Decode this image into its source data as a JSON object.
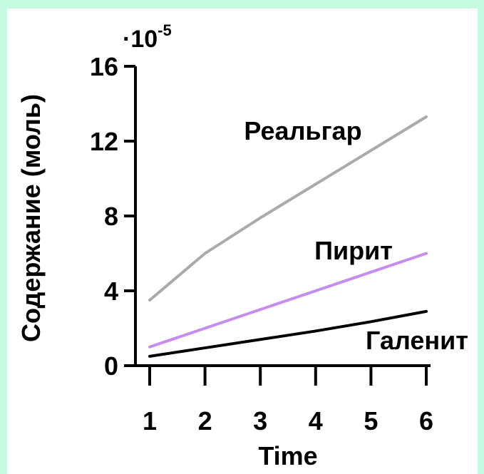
{
  "chart_data": {
    "type": "line",
    "x": [
      1,
      2,
      3,
      4,
      5,
      6
    ],
    "xlabel": "Time",
    "ylabel": "Содержание (моль)",
    "y_multiplier": {
      "base": "·10",
      "exponent": "-5"
    },
    "xlim": [
      1,
      6
    ],
    "ylim": [
      0,
      16
    ],
    "yticks": [
      0,
      4,
      8,
      12,
      16
    ],
    "xticks": [
      1,
      2,
      3,
      4,
      5,
      6
    ],
    "grid": false,
    "legend": "none",
    "series": [
      {
        "name": "Реальгар",
        "values": [
          3.5,
          6.0,
          7.9,
          9.7,
          11.5,
          13.3
        ],
        "color": "#aaaaaa"
      },
      {
        "name": "Пирит",
        "values": [
          1.0,
          2.0,
          3.0,
          4.0,
          5.0,
          6.0
        ],
        "color": "#c78cf0"
      },
      {
        "name": "Галенит",
        "values": [
          0.5,
          0.95,
          1.4,
          1.85,
          2.35,
          2.9
        ],
        "color": "#000000"
      }
    ]
  }
}
